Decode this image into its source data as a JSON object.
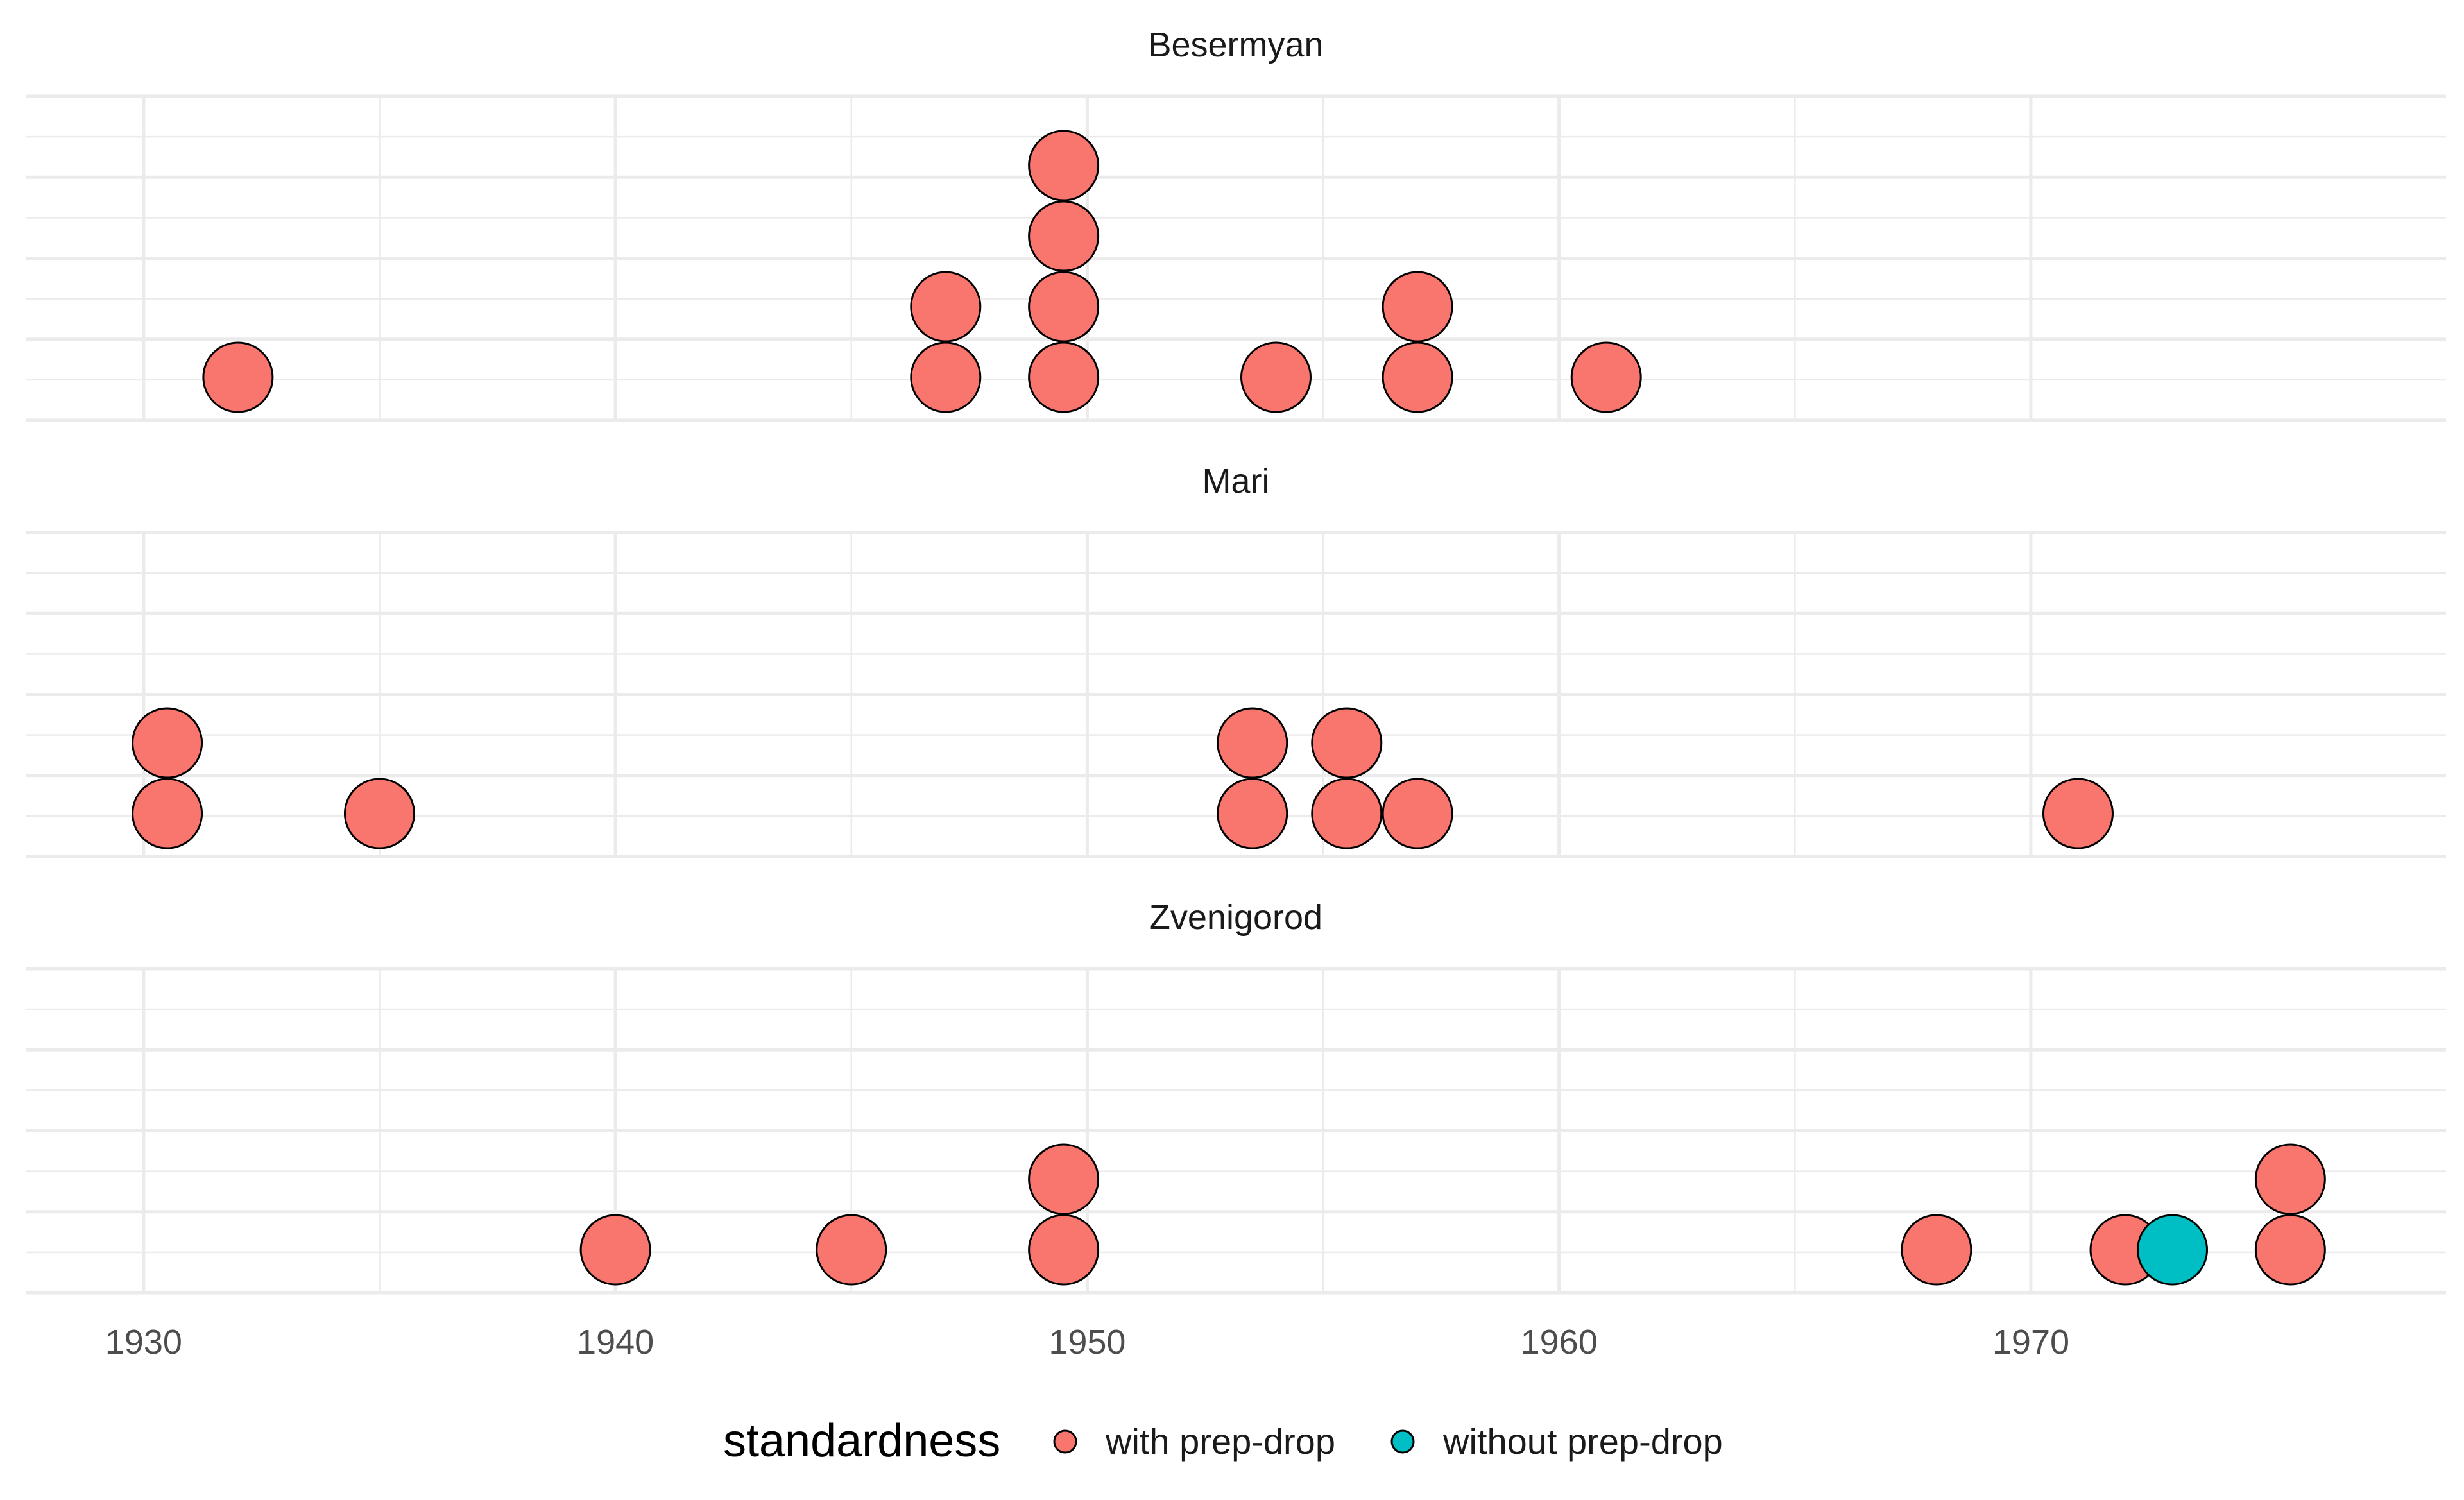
{
  "chart_data": {
    "type": "dotplot",
    "x_ticks": [
      1930,
      1940,
      1950,
      1960,
      1970
    ],
    "xlim": [
      1927.5,
      1978.8
    ],
    "grid": true,
    "legend": {
      "title": "standardness",
      "position": "bottom",
      "items": [
        {
          "label": "with prep-drop",
          "color": "#F8766D"
        },
        {
          "label": "without prep-drop",
          "color": "#00BFC4"
        }
      ]
    },
    "panels": [
      {
        "title": "Besermyan",
        "points": [
          {
            "x": 1932.0,
            "stack": 1,
            "group": 0
          },
          {
            "x": 1947.0,
            "stack": 1,
            "group": 0
          },
          {
            "x": 1947.0,
            "stack": 2,
            "group": 0
          },
          {
            "x": 1949.5,
            "stack": 1,
            "group": 0
          },
          {
            "x": 1949.5,
            "stack": 2,
            "group": 0
          },
          {
            "x": 1949.5,
            "stack": 3,
            "group": 0
          },
          {
            "x": 1949.5,
            "stack": 4,
            "group": 0
          },
          {
            "x": 1954.0,
            "stack": 1,
            "group": 0
          },
          {
            "x": 1957.0,
            "stack": 1,
            "group": 0
          },
          {
            "x": 1957.0,
            "stack": 2,
            "group": 0
          },
          {
            "x": 1961.0,
            "stack": 1,
            "group": 0
          }
        ]
      },
      {
        "title": "Mari",
        "points": [
          {
            "x": 1930.5,
            "stack": 1,
            "group": 0
          },
          {
            "x": 1930.5,
            "stack": 2,
            "group": 0
          },
          {
            "x": 1935.0,
            "stack": 1,
            "group": 0
          },
          {
            "x": 1953.5,
            "stack": 1,
            "group": 0
          },
          {
            "x": 1953.5,
            "stack": 2,
            "group": 0
          },
          {
            "x": 1955.5,
            "stack": 1,
            "group": 0
          },
          {
            "x": 1955.5,
            "stack": 2,
            "group": 0
          },
          {
            "x": 1957.0,
            "stack": 1,
            "group": 0
          },
          {
            "x": 1971.0,
            "stack": 1,
            "group": 0
          }
        ]
      },
      {
        "title": "Zvenigorod",
        "points": [
          {
            "x": 1940.0,
            "stack": 1,
            "group": 0
          },
          {
            "x": 1945.0,
            "stack": 1,
            "group": 0
          },
          {
            "x": 1949.5,
            "stack": 1,
            "group": 0
          },
          {
            "x": 1949.5,
            "stack": 2,
            "group": 0
          },
          {
            "x": 1968.0,
            "stack": 1,
            "group": 0
          },
          {
            "x": 1972.0,
            "stack": 1,
            "group": 0
          },
          {
            "x": 1973.0,
            "stack": 1,
            "group": 1
          },
          {
            "x": 1975.5,
            "stack": 1,
            "group": 0
          },
          {
            "x": 1975.5,
            "stack": 2,
            "group": 0
          }
        ]
      }
    ]
  }
}
